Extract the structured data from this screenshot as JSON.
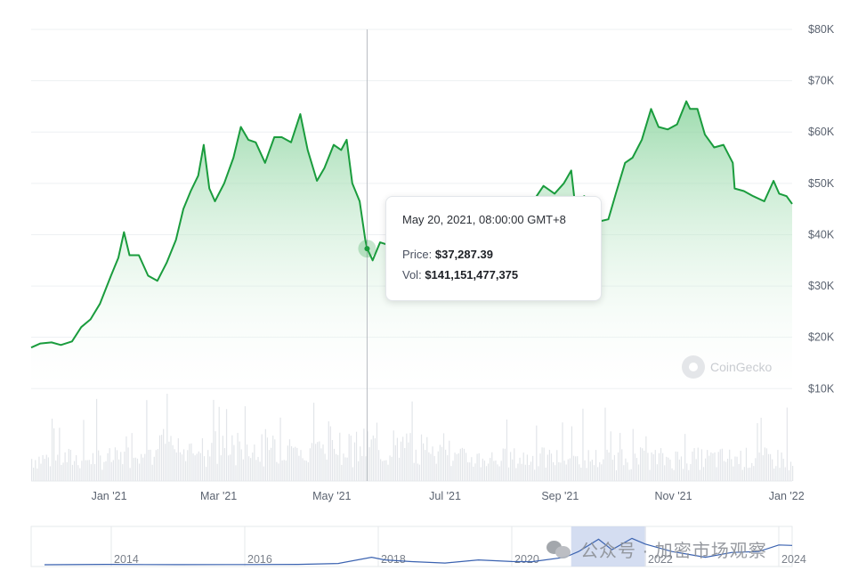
{
  "chart_data": {
    "type": "area",
    "price_axis": {
      "ticks": [
        "$10K",
        "$20K",
        "$30K",
        "$40K",
        "$50K",
        "$60K",
        "$70K",
        "$80K"
      ],
      "tick_values": [
        10000,
        20000,
        30000,
        40000,
        50000,
        60000,
        70000,
        80000
      ],
      "ylim": [
        -8000,
        80000
      ]
    },
    "x_axis": {
      "range": [
        "2020-11-20",
        "2022-01-04"
      ],
      "ticks": [
        "Jan '21",
        "Mar '21",
        "May '21",
        "Jul '21",
        "Sep '21",
        "Nov '21",
        "Jan '22"
      ],
      "tick_dates": [
        "2021-01-01",
        "2021-03-01",
        "2021-05-01",
        "2021-07-01",
        "2021-09-01",
        "2021-11-01",
        "2022-01-01"
      ]
    },
    "price_series": {
      "x": [
        "2020-11-20",
        "2020-11-25",
        "2020-12-01",
        "2020-12-06",
        "2020-12-12",
        "2020-12-17",
        "2020-12-22",
        "2020-12-27",
        "2021-01-02",
        "2021-01-06",
        "2021-01-09",
        "2021-01-12",
        "2021-01-17",
        "2021-01-22",
        "2021-01-27",
        "2021-02-01",
        "2021-02-06",
        "2021-02-10",
        "2021-02-14",
        "2021-02-18",
        "2021-02-21",
        "2021-02-24",
        "2021-02-27",
        "2021-03-04",
        "2021-03-09",
        "2021-03-13",
        "2021-03-17",
        "2021-03-21",
        "2021-03-26",
        "2021-03-31",
        "2021-04-04",
        "2021-04-09",
        "2021-04-14",
        "2021-04-18",
        "2021-04-23",
        "2021-04-27",
        "2021-05-02",
        "2021-05-06",
        "2021-05-09",
        "2021-05-12",
        "2021-05-16",
        "2021-05-19",
        "2021-05-20",
        "2021-05-23",
        "2021-05-27",
        "2021-06-02",
        "2021-06-07",
        "2021-06-12",
        "2021-06-17",
        "2021-06-22",
        "2021-06-27",
        "2021-07-03",
        "2021-07-08",
        "2021-07-14",
        "2021-07-20",
        "2021-07-26",
        "2021-07-31",
        "2021-08-06",
        "2021-08-12",
        "2021-08-18",
        "2021-08-23",
        "2021-08-29",
        "2021-09-03",
        "2021-09-07",
        "2021-09-09",
        "2021-09-14",
        "2021-09-21",
        "2021-09-27",
        "2021-10-01",
        "2021-10-06",
        "2021-10-10",
        "2021-10-15",
        "2021-10-20",
        "2021-10-24",
        "2021-10-29",
        "2021-11-03",
        "2021-11-08",
        "2021-11-10",
        "2021-11-14",
        "2021-11-18",
        "2021-11-23",
        "2021-11-28",
        "2021-12-03",
        "2021-12-04",
        "2021-12-09",
        "2021-12-14",
        "2021-12-20",
        "2021-12-25",
        "2021-12-28",
        "2022-01-01",
        "2022-01-04"
      ],
      "y": [
        18000,
        18800,
        19000,
        18500,
        19200,
        22000,
        23500,
        26500,
        32000,
        35500,
        40500,
        36000,
        36000,
        32000,
        31000,
        34500,
        39000,
        45000,
        48500,
        51500,
        57500,
        49000,
        46500,
        50000,
        55000,
        61000,
        58500,
        58000,
        54000,
        59000,
        59000,
        58000,
        63500,
        56500,
        50500,
        53000,
        57500,
        56500,
        58500,
        50000,
        46500,
        39000,
        37287,
        35000,
        38500,
        37800,
        34000,
        36500,
        40000,
        32500,
        34500,
        34000,
        33500,
        32500,
        31500,
        37500,
        41500,
        42500,
        46000,
        46800,
        49500,
        48000,
        50000,
        52500,
        46000,
        47500,
        42500,
        43000,
        48000,
        54000,
        55000,
        58500,
        64500,
        61000,
        60500,
        61500,
        66000,
        64500,
        64500,
        59500,
        57000,
        57500,
        54000,
        49000,
        48500,
        47500,
        46500,
        50500,
        48000,
        47500,
        46000
      ]
    },
    "volume_series": {
      "note": "",
      "x_start": "2020-11-20",
      "x_end": "2022-01-04"
    },
    "tooltip": {
      "date": "May 20, 2021, 08:00:00 GMT+8",
      "price_label": "Price:",
      "price_value": "$37,287.39",
      "vol_label": "Vol:",
      "vol_value": "$141,151,477,375",
      "x": "2021-05-20",
      "y": 37287
    },
    "navigator": {
      "type": "line",
      "years": [
        "2014",
        "2016",
        "2018",
        "2020",
        "2022",
        "2024"
      ],
      "year_values": [
        2014,
        2016,
        2018,
        2020,
        2022,
        2024
      ],
      "x_range": [
        2012.8,
        2024.2
      ],
      "ylim": [
        0,
        75000
      ],
      "selected_range": [
        2020.89,
        2022.01
      ],
      "x": [
        2013.0,
        2013.9,
        2014.5,
        2015.0,
        2016.0,
        2016.8,
        2017.4,
        2017.9,
        2018.1,
        2018.5,
        2019.0,
        2019.5,
        2020.0,
        2020.3,
        2020.8,
        2021.0,
        2021.3,
        2021.5,
        2021.8,
        2022.0,
        2022.4,
        2022.9,
        2023.3,
        2023.7,
        2024.0,
        2024.2
      ],
      "y": [
        100,
        800,
        500,
        300,
        430,
        900,
        2800,
        17000,
        11000,
        7000,
        3800,
        11000,
        7200,
        6800,
        17000,
        30000,
        58000,
        34000,
        60000,
        47000,
        30000,
        17000,
        28000,
        30000,
        45000,
        44000
      ]
    },
    "watermark_brand": "CoinGecko",
    "watermark_wechat": "公众号 · 加密市场观察",
    "colors": {
      "line": "#1a9c3d",
      "fill_top": "#7ccf92",
      "fill_bottom": "#ffffff",
      "grid": "#edf0f3",
      "volume": "#e2e5e9",
      "navigator_line": "#3a62b0",
      "navigator_selection": "#c9d5ee",
      "axis_text": "#5b6370"
    }
  }
}
